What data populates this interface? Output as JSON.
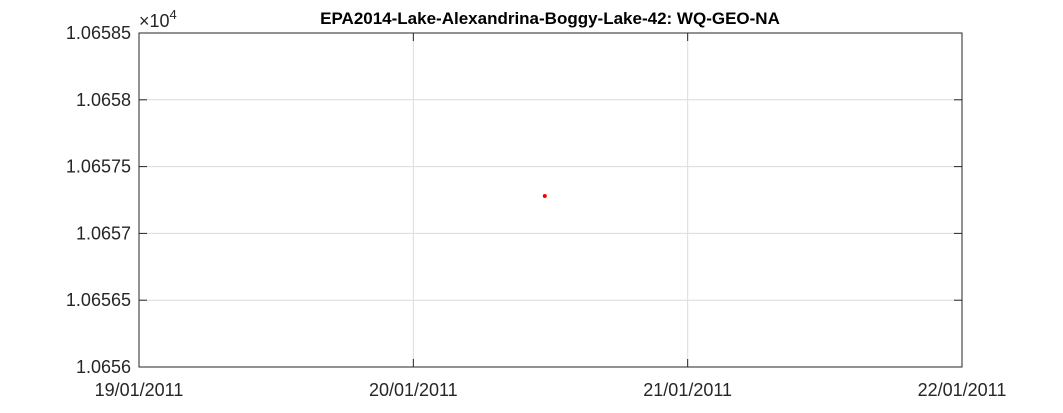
{
  "chart_data": {
    "type": "scatter",
    "title": "EPA2014-Lake-Alexandrina-Boggy-Lake-42: WQ-GEO-NA",
    "xlabel": "",
    "ylabel": "",
    "y_multiplier_base": "×10",
    "y_multiplier_exp": "4",
    "xlim": [
      "19/01/2011",
      "22/01/2011"
    ],
    "ylim": [
      1.0656,
      1.06585
    ],
    "x_ticks": [
      "19/01/2011",
      "20/01/2011",
      "21/01/2011",
      "22/01/2011"
    ],
    "y_ticks": [
      "1.0656",
      "1.06565",
      "1.0657",
      "1.06575",
      "1.0658",
      "1.06585"
    ],
    "y_tick_values": [
      1.0656,
      1.06565,
      1.0657,
      1.06575,
      1.0658,
      1.06585
    ],
    "grid": true,
    "marker_color": "#ff0000",
    "series": [
      {
        "x": [
          "20/01/2011 11:30"
        ],
        "y": [
          1.065728
        ]
      }
    ]
  }
}
